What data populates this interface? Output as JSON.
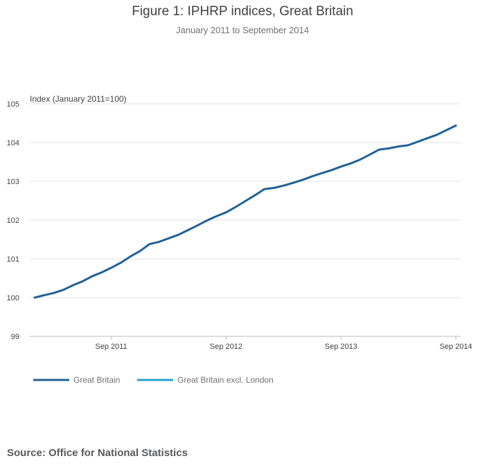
{
  "header": {
    "title": "Figure 1: IPHRP indices, Great Britain",
    "subtitle": "January 2011 to September 2014"
  },
  "chart_data": {
    "type": "line",
    "ylabel": "Index (January 2011=100)",
    "ylim": [
      99,
      105
    ],
    "yticks": [
      99,
      100,
      101,
      102,
      103,
      104,
      105
    ],
    "grid": true,
    "xticks": [
      {
        "label": "Sep 2011",
        "month": 8
      },
      {
        "label": "Sep 2012",
        "month": 20
      },
      {
        "label": "Sep 2013",
        "month": 32
      },
      {
        "label": "Sep 2014",
        "month": 44
      }
    ],
    "x_range": [
      0,
      44
    ],
    "legend_position": "bottom-left",
    "series": [
      {
        "name": "Great Britain",
        "color": "#206095",
        "values": [
          100.0,
          100.06,
          100.12,
          100.2,
          100.32,
          100.42,
          100.55,
          100.65,
          100.77,
          100.9,
          101.06,
          101.2,
          101.38,
          101.44,
          101.53,
          101.62,
          101.74,
          101.86,
          101.99,
          102.1,
          102.2,
          102.34,
          102.49,
          102.64,
          102.8,
          102.83,
          102.89,
          102.96,
          103.04,
          103.13,
          103.21,
          103.29,
          103.38,
          103.46,
          103.56,
          103.69,
          103.82,
          103.85,
          103.9,
          103.93,
          104.02,
          104.11,
          104.2,
          104.32,
          104.44
        ]
      },
      {
        "name": "Great Britain excl. London",
        "color": "#27a0cc",
        "values": []
      }
    ]
  },
  "footer": {
    "source": "Source: Office for National Statistics"
  }
}
